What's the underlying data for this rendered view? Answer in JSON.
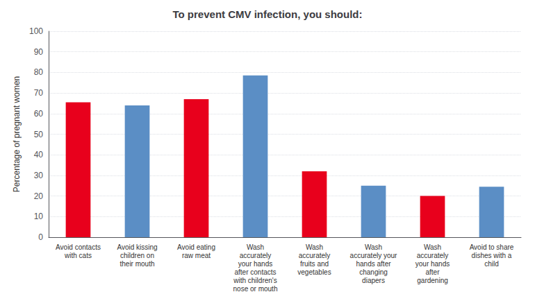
{
  "chart_data": {
    "type": "bar",
    "title": "To prevent CMV infection, you should:",
    "ylabel": "Percentage of pregnant women",
    "categories": [
      "Avoid contacts\nwith cats",
      "Avoid kissing\nchildren on\ntheir mouth",
      "Avoid eating\nraw meat",
      "Wash\naccurately\nyour hands\nafter contacts\nwith children's\nnose or mouth",
      "Wash\naccurately\nfruits and\nvegetables",
      "Wash\naccurately your\nhands after\nchanging\ndiapers",
      "Wash\naccurately\nyour hands\nafter\ngardening",
      "Avoid to share\ndishes with a\nchild"
    ],
    "values": [
      65.5,
      64.0,
      67.0,
      78.5,
      32.0,
      25.0,
      20.0,
      24.5
    ],
    "colors": [
      "#e8001c",
      "#5b8ec5",
      "#e8001c",
      "#5b8ec5",
      "#e8001c",
      "#5b8ec5",
      "#e8001c",
      "#5b8ec5"
    ],
    "ylim": [
      0,
      100
    ],
    "yticks": [
      0,
      10,
      20,
      30,
      40,
      50,
      60,
      70,
      80,
      90,
      100
    ],
    "grid": true
  }
}
